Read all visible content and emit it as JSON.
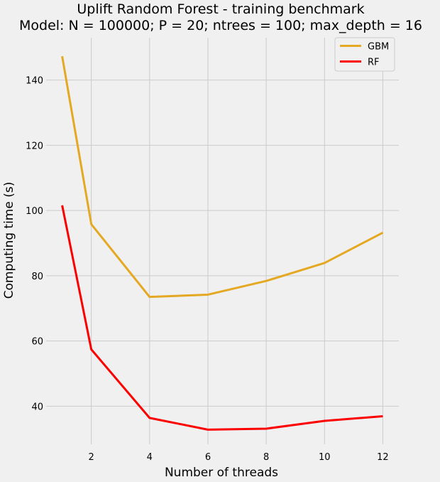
{
  "chart_data": {
    "type": "line",
    "title": "Uplift Random Forest - training benchmark",
    "subtitle": "Model: N = 100000; P = 20; ntrees = 100;  max_depth = 16",
    "xlabel": "Number of threads",
    "ylabel": "Computing time (s)",
    "x": [
      1,
      2,
      4,
      6,
      8,
      10,
      12
    ],
    "xticks": [
      2,
      4,
      6,
      8,
      10,
      12
    ],
    "yticks": [
      40,
      60,
      80,
      100,
      120,
      140
    ],
    "xlim": [
      0.45,
      12.55
    ],
    "ylim": [
      28.3,
      153.0
    ],
    "grid": true,
    "legend_position": "top-right",
    "series": [
      {
        "name": "GBM",
        "color": "#e5a823",
        "values": [
          147.3,
          95.8,
          73.5,
          74.2,
          78.4,
          83.9,
          93.2
        ]
      },
      {
        "name": "RF",
        "color": "#fc0000",
        "values": [
          101.6,
          57.4,
          36.4,
          32.8,
          33.1,
          35.5,
          36.9
        ]
      }
    ]
  }
}
